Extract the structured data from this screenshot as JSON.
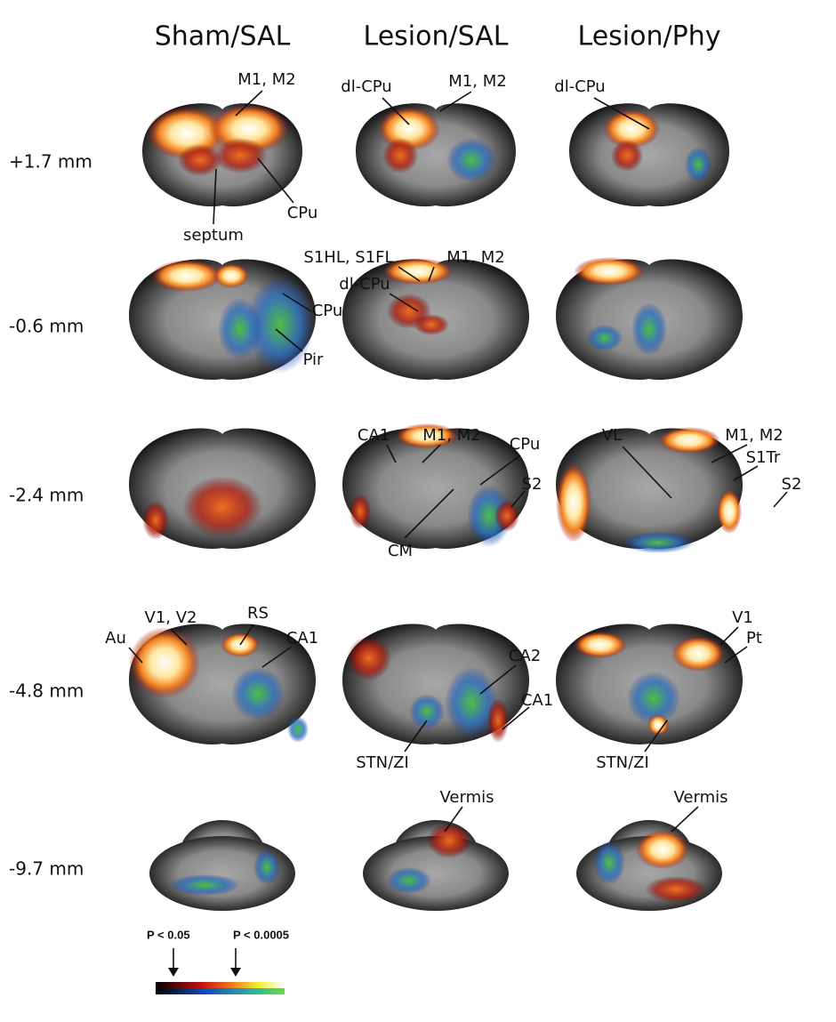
{
  "columns": [
    "Sham/SAL",
    "Lesion/SAL",
    "Lesion/Phy"
  ],
  "rows": [
    "+1.7 mm",
    "-0.6 mm",
    "-2.4 mm",
    "-4.8 mm",
    "-9.7 mm"
  ],
  "panels": [
    [
      {
        "labels": [
          "M1, M2",
          "septum",
          "CPu"
        ]
      },
      {
        "labels": [
          "dl-CPu",
          "M1, M2"
        ]
      },
      {
        "labels": [
          "dl-CPu"
        ]
      }
    ],
    [
      {
        "labels": [
          "CPu",
          "Pir"
        ]
      },
      {
        "labels": [
          "S1HL, S1FL",
          "M1, M2",
          "dl-CPu"
        ]
      },
      {
        "labels": []
      }
    ],
    [
      {
        "labels": []
      },
      {
        "labels": [
          "CA1",
          "M1, M2",
          "CPu",
          "S2",
          "CM"
        ]
      },
      {
        "labels": [
          "VL",
          "M1, M2",
          "S1Tr",
          "S2"
        ]
      }
    ],
    [
      {
        "labels": [
          "V1, V2",
          "RS",
          "CA1",
          "Au"
        ]
      },
      {
        "labels": [
          "CA2",
          "CA1",
          "STN/ZI"
        ]
      },
      {
        "labels": [
          "V1",
          "Pt",
          "STN/ZI"
        ]
      }
    ],
    [
      {
        "labels": []
      },
      {
        "labels": [
          "Vermis"
        ]
      },
      {
        "labels": [
          "Vermis"
        ]
      }
    ]
  ],
  "legend": {
    "low": "P < 0.05",
    "high": "P < 0.0005"
  }
}
